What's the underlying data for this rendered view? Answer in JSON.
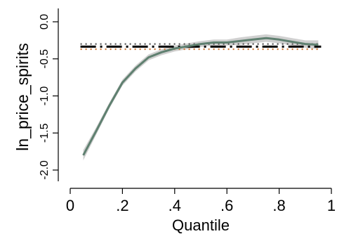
{
  "chart_data": {
    "type": "line",
    "xlabel": "Quantile",
    "ylabel": "ln_price_spirits",
    "xlim": [
      0,
      1
    ],
    "ylim": [
      -2.15,
      0.15
    ],
    "xticks": [
      0,
      0.2,
      0.4,
      0.6,
      0.8,
      1
    ],
    "xtick_labels": [
      "0",
      ".2",
      ".4",
      ".6",
      ".8",
      "1"
    ],
    "yticks": [
      0,
      -0.5,
      -1,
      -1.5,
      -2
    ],
    "ytick_labels": [
      "0.0",
      "-0.5",
      "-1.0",
      "-1.5",
      "-2.0"
    ],
    "grid": false,
    "x": [
      0.05,
      0.1,
      0.15,
      0.2,
      0.25,
      0.3,
      0.35,
      0.4,
      0.45,
      0.5,
      0.55,
      0.6,
      0.65,
      0.7,
      0.75,
      0.8,
      0.85,
      0.9,
      0.95
    ],
    "series": [
      {
        "values": [
          -1.8,
          -1.47,
          -1.13,
          -0.82,
          -0.63,
          -0.48,
          -0.41,
          -0.36,
          -0.33,
          -0.3,
          -0.28,
          -0.28,
          -0.26,
          -0.24,
          -0.22,
          -0.24,
          -0.27,
          -0.3,
          -0.31
        ],
        "lower": [
          -1.87,
          -1.52,
          -1.17,
          -0.86,
          -0.67,
          -0.52,
          -0.45,
          -0.4,
          -0.37,
          -0.34,
          -0.32,
          -0.32,
          -0.31,
          -0.29,
          -0.27,
          -0.29,
          -0.32,
          -0.35,
          -0.37
        ],
        "upper": [
          -1.73,
          -1.42,
          -1.09,
          -0.78,
          -0.59,
          -0.44,
          -0.37,
          -0.32,
          -0.29,
          -0.26,
          -0.24,
          -0.24,
          -0.21,
          -0.19,
          -0.17,
          -0.19,
          -0.22,
          -0.25,
          -0.25
        ],
        "color": "#5f8070",
        "band_color": "#c8c8c8"
      }
    ],
    "reference_lines": [
      {
        "value": -0.335,
        "style": "long-dash",
        "color": "#000000"
      },
      {
        "value": -0.3,
        "style": "dotted",
        "color": "#555555"
      },
      {
        "value": -0.37,
        "style": "dotted",
        "color": "#d07a3a"
      }
    ]
  }
}
